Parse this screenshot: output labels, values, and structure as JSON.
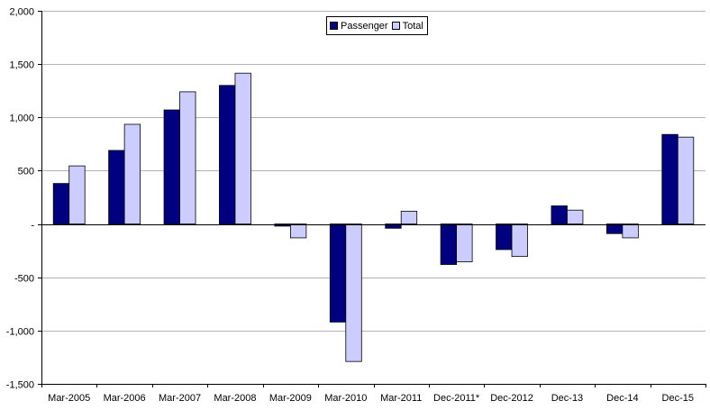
{
  "chart_data": {
    "type": "bar",
    "title": "",
    "xlabel": "",
    "ylabel": "",
    "categories": [
      "Mar-2005",
      "Mar-2006",
      "Mar-2007",
      "Mar-2008",
      "Mar-2009",
      "Mar-2010",
      "Mar-2011",
      "Dec-2011*",
      "Dec-2012",
      "Dec-13",
      "Dec-14",
      "Dec-15"
    ],
    "series": [
      {
        "name": "Passenger",
        "color": "#000080",
        "values": [
          380,
          690,
          1070,
          1300,
          -20,
          -920,
          -40,
          -380,
          -240,
          170,
          -90,
          840
        ]
      },
      {
        "name": "Total",
        "color": "#CCCCFF",
        "values": [
          545,
          935,
          1240,
          1415,
          -130,
          -1290,
          120,
          -355,
          -305,
          130,
          -130,
          815
        ]
      }
    ],
    "ylim": [
      -1500,
      2000
    ],
    "yticks": [
      2000,
      1500,
      1000,
      500,
      0,
      -500,
      -1000,
      -1500
    ],
    "ytick_labels": [
      "2,000",
      "1,500",
      "1,000",
      "500",
      "-",
      "-500",
      "-1,000",
      "-1,500"
    ],
    "grid": true,
    "legend_position": "top-center"
  }
}
